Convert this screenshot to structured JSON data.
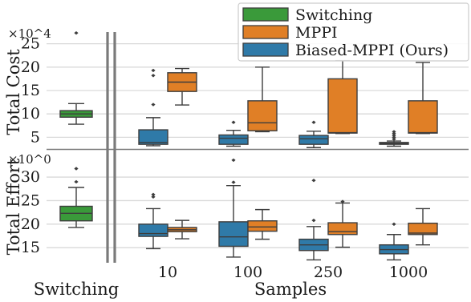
{
  "chart_data": [
    {
      "type": "box",
      "ylabel": "Total Cost",
      "y_multiplier": "×10^4",
      "ylim": [
        2.5,
        27.5
      ],
      "yticks": [
        5,
        10,
        15,
        20,
        25
      ],
      "switching": {
        "q1": 9.3,
        "median": 10.0,
        "q3": 10.7,
        "whislo": 7.8,
        "whishi": 12.2,
        "fliers": [
          27.3
        ]
      },
      "series": [
        {
          "name": "Biased-MPPI (Ours)",
          "color": "#2f7aa8",
          "boxes": [
            {
              "q1": 3.5,
              "median": 3.9,
              "q3": 6.6,
              "whislo": 3.2,
              "whishi": 9.2,
              "fliers": [
                12.0,
                18.2,
                19.3
              ]
            },
            {
              "q1": 3.5,
              "median": 4.8,
              "q3": 5.5,
              "whislo": 3.1,
              "whishi": 6.5,
              "fliers": [
                8.2
              ]
            },
            {
              "q1": 3.5,
              "median": 4.7,
              "q3": 5.4,
              "whislo": 2.8,
              "whishi": 6.3,
              "fliers": [
                8.2
              ]
            },
            {
              "q1": 3.5,
              "median": 3.7,
              "q3": 3.9,
              "whislo": 3.1,
              "whishi": 4.2,
              "fliers": [
                4.6,
                5.0,
                5.4,
                5.8,
                6.2
              ]
            }
          ]
        },
        {
          "name": "MPPI",
          "color": "#e07f26",
          "boxes": [
            {
              "q1": 14.8,
              "median": 16.8,
              "q3": 18.8,
              "whislo": 11.9,
              "whishi": 19.7,
              "fliers": []
            },
            {
              "q1": 6.4,
              "median": 8.1,
              "q3": 12.8,
              "whislo": 6.2,
              "whishi": 20.0,
              "fliers": []
            },
            {
              "q1": 5.9,
              "median": 6.0,
              "q3": 17.5,
              "whislo": 5.8,
              "whishi": 21.4,
              "fliers": []
            },
            {
              "q1": 5.9,
              "median": 6.0,
              "q3": 12.8,
              "whislo": 5.8,
              "whishi": 21.0,
              "fliers": []
            }
          ]
        }
      ]
    },
    {
      "type": "box",
      "ylabel": "Total Effort",
      "y_multiplier": "×10^0",
      "ylim": [
        11.8,
        35.8
      ],
      "yticks": [
        15,
        20,
        25,
        30
      ],
      "switching": {
        "q1": 20.7,
        "median": 22.3,
        "q3": 23.8,
        "whislo": 19.3,
        "whishi": 27.8,
        "fliers": [
          29.0,
          31.8
        ]
      },
      "series": [
        {
          "name": "Biased-MPPI (Ours)",
          "color": "#2f7aa8",
          "boxes": [
            {
              "q1": 17.4,
              "median": 18.0,
              "q3": 20.0,
              "whislo": 14.8,
              "whishi": 23.3,
              "fliers": [
                25.8,
                26.3
              ]
            },
            {
              "q1": 15.3,
              "median": 17.3,
              "q3": 20.5,
              "whislo": 13.0,
              "whishi": 28.2,
              "fliers": [
                28.9,
                33.6
              ]
            },
            {
              "q1": 14.4,
              "median": 15.6,
              "q3": 16.8,
              "whislo": 12.4,
              "whishi": 19.5,
              "fliers": [
                20.8,
                29.3
              ]
            },
            {
              "q1": 13.7,
              "median": 14.6,
              "q3": 15.6,
              "whislo": 12.4,
              "whishi": 17.8,
              "fliers": [
                20.0
              ]
            }
          ]
        },
        {
          "name": "MPPI",
          "color": "#e07f26",
          "boxes": [
            {
              "q1": 18.4,
              "median": 18.8,
              "q3": 19.3,
              "whislo": 16.9,
              "whishi": 20.8,
              "fliers": []
            },
            {
              "q1": 18.5,
              "median": 19.4,
              "q3": 20.7,
              "whislo": 16.8,
              "whishi": 23.1,
              "fliers": []
            },
            {
              "q1": 17.8,
              "median": 18.4,
              "q3": 20.3,
              "whislo": 15.1,
              "whishi": 24.5,
              "fliers": [
                24.8
              ]
            },
            {
              "q1": 17.8,
              "median": 18.1,
              "q3": 20.2,
              "whislo": 15.6,
              "whishi": 23.3,
              "fliers": []
            }
          ]
        }
      ]
    }
  ],
  "x_axis": {
    "label": "Samples",
    "categories": [
      "10",
      "100",
      "250",
      "1000"
    ],
    "switching_label": "Switching"
  },
  "legend": {
    "placement": "top-right",
    "entries": [
      {
        "label": "Switching",
        "color": "#3a9a3a"
      },
      {
        "label": "MPPI",
        "color": "#e07f26"
      },
      {
        "label": "Biased-MPPI (Ours)",
        "color": "#2f7aa8"
      }
    ]
  }
}
